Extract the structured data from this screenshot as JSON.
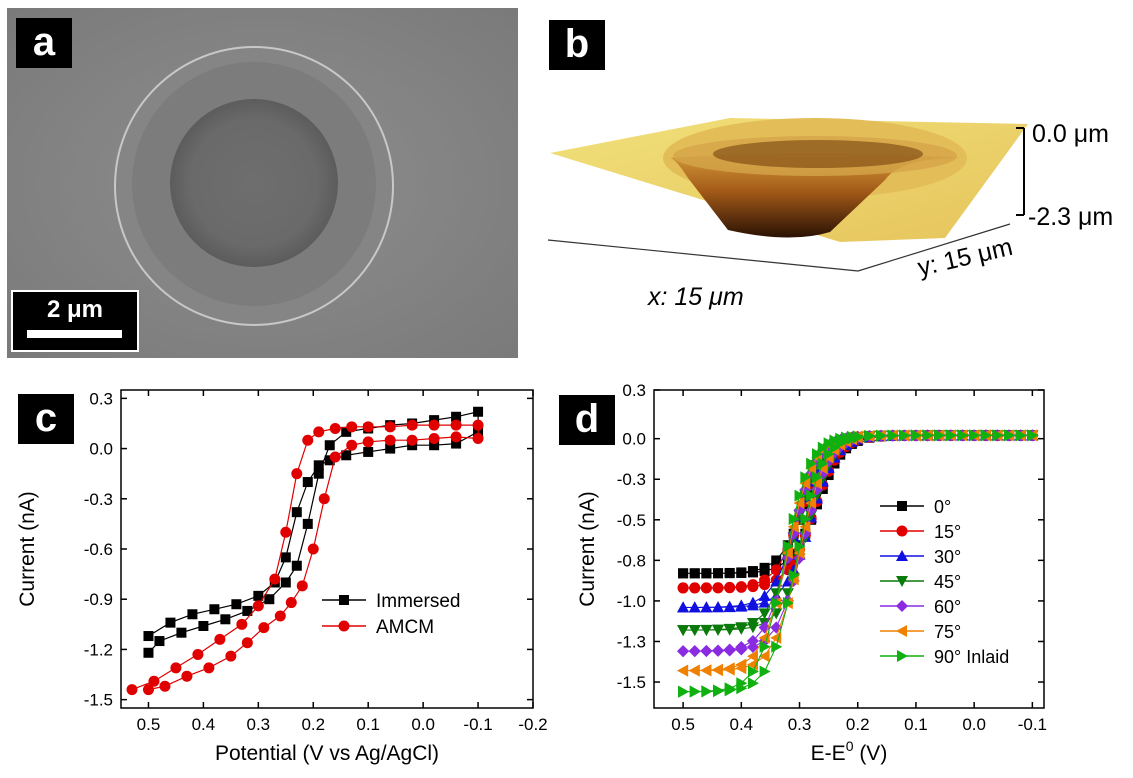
{
  "panels": {
    "a": "a",
    "b": "b",
    "c": "c",
    "d": "d"
  },
  "sem": {
    "scale_bar": "2 μm"
  },
  "afm": {
    "z_top": "0.0 μm",
    "z_bottom": "-2.3 μm",
    "x_label": "x: 15 μm",
    "y_label": "y: 15 μm"
  },
  "chart_data": [
    {
      "panel": "c",
      "type": "line",
      "xlabel": "Potential (V vs Ag/AgCl)",
      "ylabel": "Current (nA)",
      "xlim": [
        0.55,
        -0.2
      ],
      "ylim": [
        -1.55,
        0.35
      ],
      "xticks": [
        0.5,
        0.4,
        0.3,
        0.2,
        0.1,
        0.0,
        -0.1,
        -0.2
      ],
      "xtick_labels": [
        "0.5",
        "0.4",
        "0.3",
        "0.2",
        "0.1",
        "0.0",
        "-0.1",
        "-0.2"
      ],
      "yticks": [
        0.3,
        0.0,
        -0.3,
        -0.6,
        -0.9,
        -1.2,
        -1.5
      ],
      "ytick_labels": [
        "0.3",
        "0.0",
        "-0.3",
        "-0.6",
        "-0.9",
        "-1.2",
        "-1.5"
      ],
      "legend_position": "lower-right",
      "series": [
        {
          "name": "Immersed",
          "color": "#000000",
          "marker": "square",
          "x": [
            0.5,
            0.46,
            0.42,
            0.38,
            0.34,
            0.3,
            0.27,
            0.25,
            0.23,
            0.21,
            0.19,
            0.17,
            0.14,
            0.1,
            0.06,
            0.02,
            -0.02,
            -0.06,
            -0.1,
            -0.1,
            -0.06,
            -0.02,
            0.02,
            0.06,
            0.1,
            0.14,
            0.17,
            0.19,
            0.21,
            0.23,
            0.25,
            0.28,
            0.32,
            0.36,
            0.4,
            0.44,
            0.48,
            0.5
          ],
          "y": [
            -1.12,
            -1.04,
            -0.99,
            -0.96,
            -0.93,
            -0.88,
            -0.8,
            -0.65,
            -0.38,
            -0.2,
            -0.1,
            -0.07,
            -0.04,
            -0.02,
            0.0,
            0.02,
            0.02,
            0.03,
            0.1,
            0.22,
            0.19,
            0.17,
            0.15,
            0.14,
            0.12,
            0.1,
            0.02,
            -0.15,
            -0.45,
            -0.7,
            -0.8,
            -0.9,
            -0.97,
            -1.02,
            -1.06,
            -1.1,
            -1.15,
            -1.22
          ]
        },
        {
          "name": "AMCM",
          "color": "#e00000",
          "marker": "circle",
          "x": [
            0.53,
            0.49,
            0.45,
            0.41,
            0.37,
            0.33,
            0.3,
            0.27,
            0.25,
            0.23,
            0.21,
            0.19,
            0.16,
            0.13,
            0.1,
            0.06,
            0.02,
            -0.02,
            -0.06,
            -0.1,
            -0.1,
            -0.06,
            -0.02,
            0.02,
            0.06,
            0.1,
            0.13,
            0.16,
            0.18,
            0.2,
            0.22,
            0.24,
            0.26,
            0.29,
            0.32,
            0.35,
            0.39,
            0.43,
            0.47,
            0.5
          ],
          "y": [
            -1.44,
            -1.39,
            -1.31,
            -1.23,
            -1.14,
            -1.05,
            -0.94,
            -0.78,
            -0.5,
            -0.15,
            0.05,
            0.1,
            0.12,
            0.13,
            0.13,
            0.13,
            0.14,
            0.14,
            0.14,
            0.14,
            0.06,
            0.07,
            0.06,
            0.05,
            0.05,
            0.04,
            0.02,
            -0.05,
            -0.3,
            -0.6,
            -0.82,
            -0.92,
            -1.0,
            -1.07,
            -1.16,
            -1.24,
            -1.31,
            -1.36,
            -1.42,
            -1.44
          ]
        }
      ]
    },
    {
      "panel": "d",
      "type": "line",
      "xlabel": "E-E",
      "xlabel_sup": "0",
      "xlabel_unit": " (V)",
      "ylabel": "Current (nA)",
      "xlim": [
        0.55,
        -0.12
      ],
      "ylim": [
        -1.66,
        0.3
      ],
      "xticks": [
        0.5,
        0.4,
        0.3,
        0.2,
        0.1,
        0.0,
        -0.1
      ],
      "xtick_labels": [
        "0.5",
        "0.4",
        "0.3",
        "0.2",
        "0.1",
        "0.0",
        "-0.1"
      ],
      "yticks": [
        0.3,
        0.0,
        -0.3,
        -0.5,
        -0.8,
        -1.0,
        -1.3,
        -1.5
      ],
      "ytick_labels": [
        "0.3",
        "0.0",
        "-0.3",
        "-0.5",
        "-0.8",
        "-1.0",
        "-1.3",
        "-1.5"
      ],
      "ytick_values_for_placement": [
        0.3,
        0.0,
        -0.25,
        -0.5,
        -0.75,
        -1.0,
        -1.25,
        -1.5
      ],
      "legend_position": "lower-right",
      "series": [
        {
          "name": "0°",
          "color": "#000000",
          "marker": "square",
          "plateau": -0.83
        },
        {
          "name": "15°",
          "color": "#e00000",
          "marker": "circle",
          "plateau": -0.92
        },
        {
          "name": "30°",
          "color": "#1010e0",
          "marker": "triangle-up",
          "plateau": -1.04
        },
        {
          "name": "45°",
          "color": "#0a7a0a",
          "marker": "triangle-down",
          "plateau": -1.18
        },
        {
          "name": "60°",
          "color": "#8a2be2",
          "marker": "diamond",
          "plateau": -1.31
        },
        {
          "name": "75°",
          "color": "#f08000",
          "marker": "triangle-left",
          "plateau": -1.43
        },
        {
          "name": "90° Inlaid",
          "color": "#10b010",
          "marker": "triangle-right",
          "plateau": -1.56
        }
      ]
    }
  ]
}
